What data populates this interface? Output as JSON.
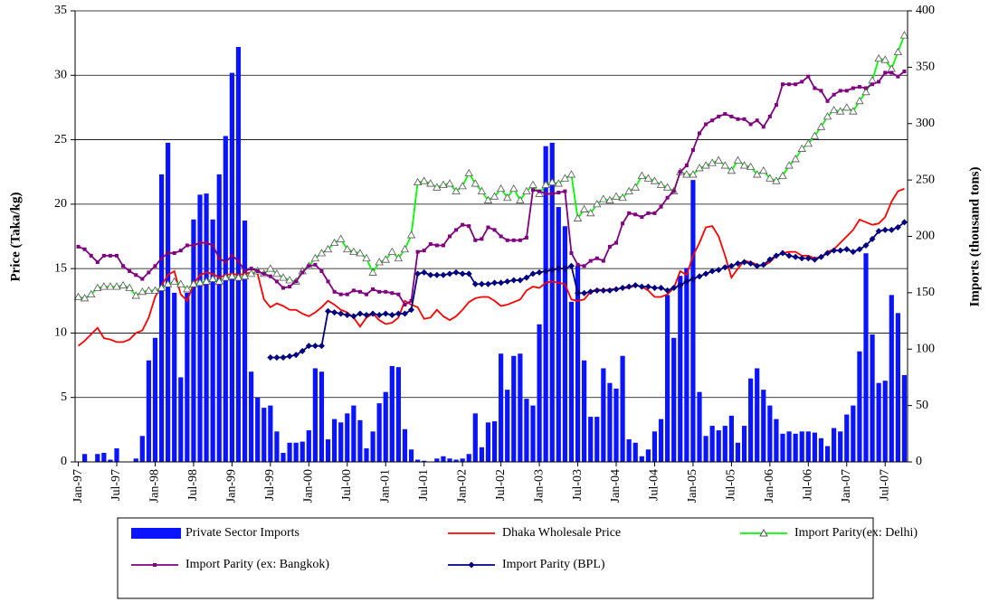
{
  "chart_data": {
    "type": "combo",
    "y_label": "Price (Taka/kg)",
    "y2_label": "Imports (thousand tons)",
    "categories": [
      "Jan-97",
      null,
      null,
      null,
      null,
      null,
      "Jul-97",
      null,
      null,
      null,
      null,
      null,
      "Jan-98",
      null,
      null,
      null,
      null,
      null,
      "Jul-98",
      null,
      null,
      null,
      null,
      null,
      "Jan-99",
      null,
      null,
      null,
      null,
      null,
      "Jul-99",
      null,
      null,
      null,
      null,
      null,
      "Jan-00",
      null,
      null,
      null,
      null,
      null,
      "Jul-00",
      null,
      null,
      null,
      null,
      null,
      "Jan-01",
      null,
      null,
      null,
      null,
      null,
      "Jul-01",
      null,
      null,
      null,
      null,
      null,
      "Jan-02",
      null,
      null,
      null,
      null,
      null,
      "Jul-02",
      null,
      null,
      null,
      null,
      null,
      "Jan-03",
      null,
      null,
      null,
      null,
      null,
      "Jul-03",
      null,
      null,
      null,
      null,
      null,
      "Jan-04",
      null,
      null,
      null,
      null,
      null,
      "Jul-04",
      null,
      null,
      null,
      null,
      null,
      "Jan-05",
      null,
      null,
      null,
      null,
      null,
      "Jul-05",
      null,
      null,
      null,
      null,
      null,
      "Jan-06",
      null,
      null,
      null,
      null,
      null,
      "Jul-06",
      null,
      null,
      null,
      null,
      null,
      "Jan-07",
      null,
      null,
      null,
      null,
      null,
      "Jul-07",
      null,
      null,
      null
    ],
    "ylim": [
      0,
      35
    ],
    "yticks": [
      0,
      5,
      10,
      15,
      20,
      25,
      30,
      35
    ],
    "y2lim": [
      0,
      400
    ],
    "y2ticks": [
      0,
      50,
      100,
      150,
      200,
      250,
      300,
      350,
      400
    ],
    "grid": true,
    "legend": "bottom",
    "series": [
      {
        "name": "Private Sector Imports",
        "type": "bar",
        "axis": "y2",
        "color": "#0a14ff",
        "values": [
          0,
          7,
          0,
          7,
          8,
          2,
          12,
          0,
          0,
          3,
          23,
          90,
          110,
          255,
          283,
          150,
          75,
          150,
          215,
          237,
          238,
          215,
          255,
          289,
          345,
          368,
          214,
          80,
          57,
          48,
          50,
          27,
          8,
          17,
          17,
          18,
          28,
          83,
          80,
          20,
          38,
          35,
          43,
          50,
          37,
          12,
          27,
          52,
          62,
          85,
          84,
          29,
          11,
          2,
          1,
          0,
          3,
          5,
          3,
          2,
          3,
          7,
          43,
          13,
          35,
          36,
          96,
          64,
          94,
          96,
          56,
          50,
          122,
          280,
          283,
          226,
          209,
          142,
          174,
          90,
          40,
          40,
          83,
          70,
          65,
          94,
          20,
          17,
          5,
          11,
          27,
          38,
          148,
          110,
          165,
          172,
          250,
          62,
          23,
          32,
          28,
          32,
          41,
          17,
          32,
          74,
          83,
          64,
          50,
          38,
          25,
          27,
          25,
          27,
          27,
          26,
          21,
          14,
          30,
          27,
          42,
          50,
          98,
          185,
          113,
          70,
          72,
          148,
          132,
          77
        ]
      },
      {
        "name": "Dhaka Wholesale Price",
        "type": "line",
        "color": "#ff0000",
        "marker": null,
        "values": [
          9.0,
          9.4,
          9.9,
          10.4,
          9.6,
          9.5,
          9.3,
          9.3,
          9.5,
          10.0,
          10.2,
          11.2,
          12.8,
          13.7,
          14.5,
          14.8,
          13.0,
          12.5,
          13.8,
          14.5,
          14.7,
          14.6,
          14.3,
          14.5,
          14.6,
          14.5,
          14.6,
          14.7,
          14.6,
          12.6,
          12.0,
          12.3,
          12.1,
          11.8,
          11.8,
          11.5,
          11.3,
          11.6,
          12.0,
          12.5,
          12.2,
          11.8,
          11.6,
          11.2,
          10.5,
          11.2,
          11.5,
          11.0,
          10.7,
          10.8,
          11.2,
          12.5,
          12.2,
          12.0,
          11.1,
          11.2,
          11.8,
          11.3,
          11.0,
          11.3,
          11.8,
          12.4,
          12.7,
          12.8,
          12.8,
          12.5,
          12.1,
          12.2,
          12.4,
          12.6,
          13.3,
          13.6,
          13.5,
          13.9,
          14.0,
          13.9,
          13.8,
          12.6,
          12.5,
          12.6,
          13.2,
          13.4,
          13.3,
          13.4,
          13.4,
          13.5,
          13.5,
          13.7,
          13.6,
          13.3,
          12.8,
          12.8,
          13.0,
          13.5,
          14.8,
          14.5,
          16.0,
          17.0,
          18.2,
          18.3,
          17.5,
          16.0,
          14.3,
          15.0,
          15.6,
          15.5,
          15.3,
          15.2,
          15.5,
          16.0,
          16.2,
          16.3,
          16.3,
          16.0,
          16.0,
          15.8,
          15.9,
          16.3,
          16.5,
          17.0,
          17.5,
          18.0,
          18.8,
          18.6,
          18.4,
          18.5,
          19.0,
          20.2,
          21.0,
          21.2
        ]
      },
      {
        "name": "Import Parity(ex: Delhi)",
        "type": "line",
        "color": "#00ff00",
        "marker": "triangle",
        "values": [
          12.8,
          12.7,
          13.0,
          13.5,
          13.6,
          13.6,
          13.6,
          13.7,
          13.5,
          12.9,
          13.2,
          13.3,
          13.3,
          13.5,
          13.8,
          14.0,
          13.8,
          13.4,
          13.8,
          13.9,
          14.0,
          14.2,
          14.0,
          14.3,
          14.4,
          14.3,
          14.4,
          14.6,
          14.8,
          14.6,
          15.0,
          14.6,
          14.3,
          14.1,
          14.0,
          14.8,
          15.2,
          15.8,
          16.2,
          16.5,
          17.0,
          17.3,
          16.5,
          16.3,
          16.2,
          15.8,
          14.7,
          15.5,
          15.7,
          16.3,
          15.8,
          16.5,
          17.6,
          21.7,
          21.8,
          21.6,
          21.3,
          21.5,
          21.6,
          21.0,
          21.4,
          22.4,
          21.6,
          21.0,
          20.3,
          20.6,
          21.2,
          20.5,
          21.2,
          20.3,
          21.0,
          21.5,
          20.8,
          21.5,
          21.7,
          21.6,
          22.0,
          22.3,
          18.9,
          19.6,
          19.3,
          20.0,
          20.4,
          20.3,
          20.6,
          20.5,
          21.0,
          21.3,
          22.2,
          22.0,
          21.8,
          21.5,
          21.3,
          21.0,
          22.5,
          22.3,
          22.3,
          22.8,
          23.0,
          23.2,
          23.4,
          23.0,
          22.6,
          23.4,
          23.0,
          22.9,
          22.3,
          22.6,
          22.0,
          21.8,
          22.2,
          23.0,
          23.5,
          24.3,
          24.7,
          25.3,
          26.0,
          26.8,
          27.3,
          27.2,
          27.5,
          27.2,
          28.0,
          28.7,
          29.6,
          31.3,
          31.2,
          30.5,
          31.8,
          33.1
        ]
      },
      {
        "name": "Import Parity (ex: Bangkok)",
        "type": "line",
        "color": "#800080",
        "marker": "square",
        "values": [
          16.7,
          16.5,
          16.0,
          15.5,
          16.0,
          16.0,
          16.0,
          15.2,
          14.8,
          14.5,
          14.2,
          14.7,
          15.2,
          15.8,
          16.2,
          16.2,
          16.4,
          16.8,
          16.8,
          17.0,
          17.0,
          16.8,
          15.8,
          15.5,
          16.0,
          15.6,
          14.8,
          15.0,
          14.8,
          14.6,
          14.4,
          14.0,
          13.5,
          13.6,
          14.0,
          14.7,
          15.2,
          15.3,
          14.8,
          14.0,
          13.2,
          13.0,
          13.0,
          13.3,
          13.2,
          13.0,
          13.4,
          13.2,
          13.2,
          13.1,
          13.0,
          12.2,
          12.5,
          16.3,
          16.4,
          16.9,
          16.8,
          16.8,
          17.5,
          18.0,
          18.4,
          18.3,
          17.2,
          17.3,
          18.2,
          18.0,
          17.5,
          17.2,
          17.2,
          17.2,
          17.4,
          21.1,
          21.0,
          20.8,
          20.8,
          20.9,
          21.0,
          16.2,
          15.3,
          15.2,
          15.6,
          15.8,
          15.6,
          16.7,
          17.0,
          18.5,
          19.3,
          19.2,
          19.0,
          19.3,
          19.3,
          19.8,
          20.5,
          21.0,
          22.5,
          23.0,
          24.2,
          25.5,
          26.2,
          26.5,
          26.8,
          27.0,
          26.8,
          26.6,
          26.6,
          26.2,
          26.5,
          26.0,
          26.8,
          27.7,
          29.3,
          29.3,
          29.3,
          29.5,
          29.9,
          29.0,
          28.8,
          28.0,
          28.5,
          28.8,
          28.8,
          29.0,
          29.1,
          29.0,
          29.3,
          29.5,
          30.2,
          30.2,
          29.9,
          30.3
        ]
      },
      {
        "name": "Import Parity (BPL)",
        "type": "line",
        "color": "#000080",
        "marker": "diamond",
        "values": [
          null,
          null,
          null,
          null,
          null,
          null,
          null,
          null,
          null,
          null,
          null,
          null,
          null,
          null,
          null,
          null,
          null,
          null,
          null,
          null,
          null,
          null,
          null,
          null,
          null,
          null,
          null,
          null,
          null,
          null,
          8.1,
          8.1,
          8.1,
          8.2,
          8.3,
          8.6,
          9.0,
          9.0,
          9.0,
          11.7,
          11.6,
          11.5,
          11.4,
          11.3,
          11.5,
          11.4,
          11.5,
          11.4,
          11.5,
          11.4,
          11.5,
          11.5,
          11.8,
          14.6,
          14.7,
          14.5,
          14.5,
          14.5,
          14.6,
          14.7,
          14.6,
          14.6,
          13.8,
          13.8,
          13.8,
          13.9,
          13.9,
          14.0,
          14.1,
          14.1,
          14.3,
          14.6,
          14.7,
          14.8,
          14.9,
          15.0,
          15.0,
          15.2,
          13.1,
          13.1,
          13.2,
          13.3,
          13.3,
          13.3,
          13.4,
          13.5,
          13.6,
          13.7,
          13.6,
          13.6,
          13.5,
          13.5,
          13.3,
          13.5,
          13.7,
          14.0,
          14.2,
          14.4,
          14.6,
          14.8,
          14.9,
          15.1,
          15.2,
          15.4,
          15.5,
          15.4,
          15.2,
          15.3,
          15.7,
          16.0,
          16.2,
          16.0,
          15.9,
          15.8,
          15.8,
          15.7,
          15.9,
          16.2,
          16.4,
          16.4,
          16.5,
          16.3,
          16.5,
          16.8,
          17.3,
          17.9,
          18.0,
          18.0,
          18.2,
          18.6
        ]
      }
    ]
  }
}
